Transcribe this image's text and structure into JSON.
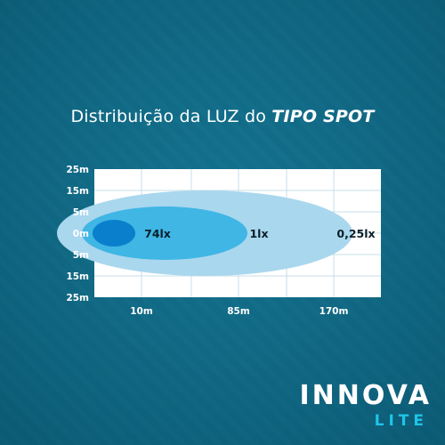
{
  "title": {
    "prefix": "Distribuição da LUZ do",
    "emphasis": "TIPO SPOT"
  },
  "diagram": {
    "y_tick_labels": [
      "25m",
      "15m",
      "5m",
      "0m",
      "5m",
      "15m",
      "25m"
    ],
    "x_tick_labels": [
      "10m",
      "85m",
      "170m"
    ],
    "zones": [
      {
        "label": "0,25lx",
        "color": "#a9d7ee"
      },
      {
        "label": "1lx",
        "color": "#3fb6e4"
      },
      {
        "label": "74lx",
        "color": "#0a7fcb"
      }
    ],
    "chart_background": "#ffffff",
    "grid_color": "#c7dfe8"
  },
  "logo": {
    "main": "INNOVA",
    "sub": "LITE"
  },
  "colors": {
    "background": "#0f6a86",
    "accent": "#1fc4e8"
  }
}
